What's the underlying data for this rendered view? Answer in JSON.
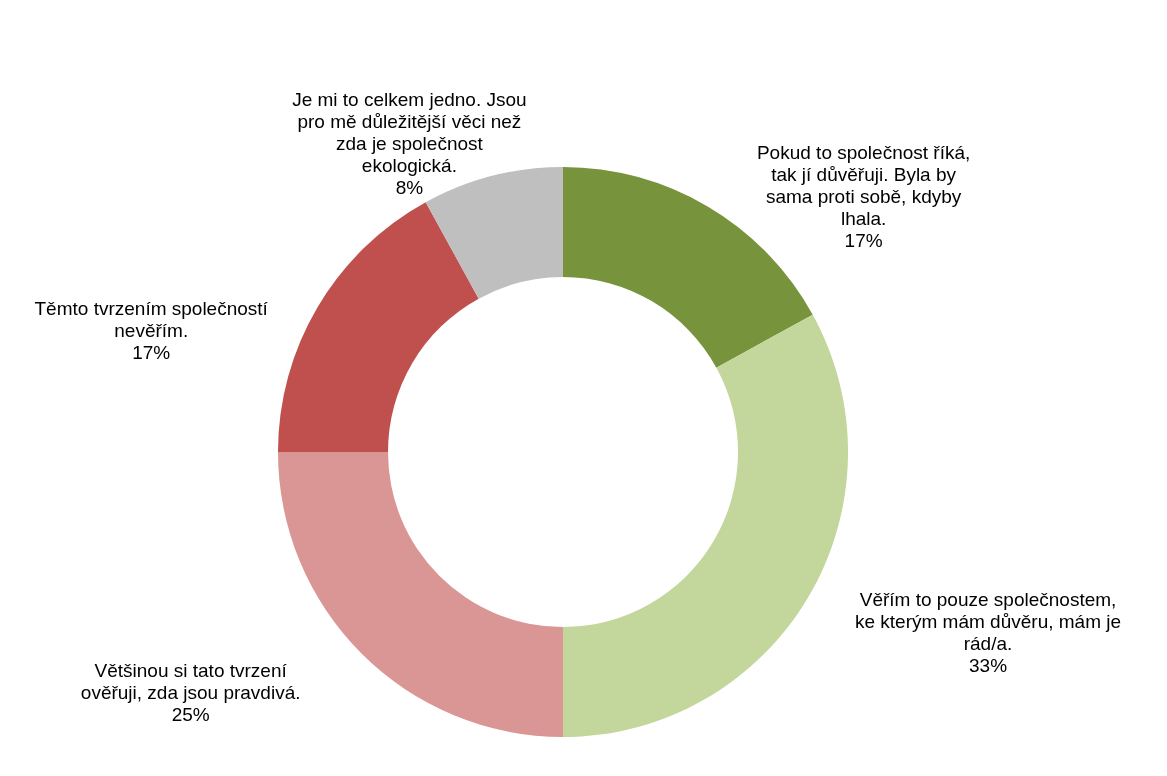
{
  "chart_data": {
    "type": "donut",
    "categories": [
      "Pokud to společnost říká, tak jí důvěřuji. Byla by sama proti sobě, kdyby lhala.",
      "Věřím to pouze společnostem, ke kterým mám důvěru, mám je rád/a.",
      "Většinou si tato tvrzení ověřuji, zda jsou pravdivá.",
      "Těmto tvrzením společností nevěřím.",
      "Je mi to celkem jedno. Jsou pro mě důležitější věci než zda je společnost ekologická."
    ],
    "values": [
      17,
      33,
      25,
      17,
      8
    ],
    "value_labels": [
      "17%",
      "33%",
      "25%",
      "17%",
      "8%"
    ],
    "colors": [
      "#77933c",
      "#c3d69b",
      "#d99694",
      "#c0504d",
      "#bfbfbf"
    ]
  }
}
